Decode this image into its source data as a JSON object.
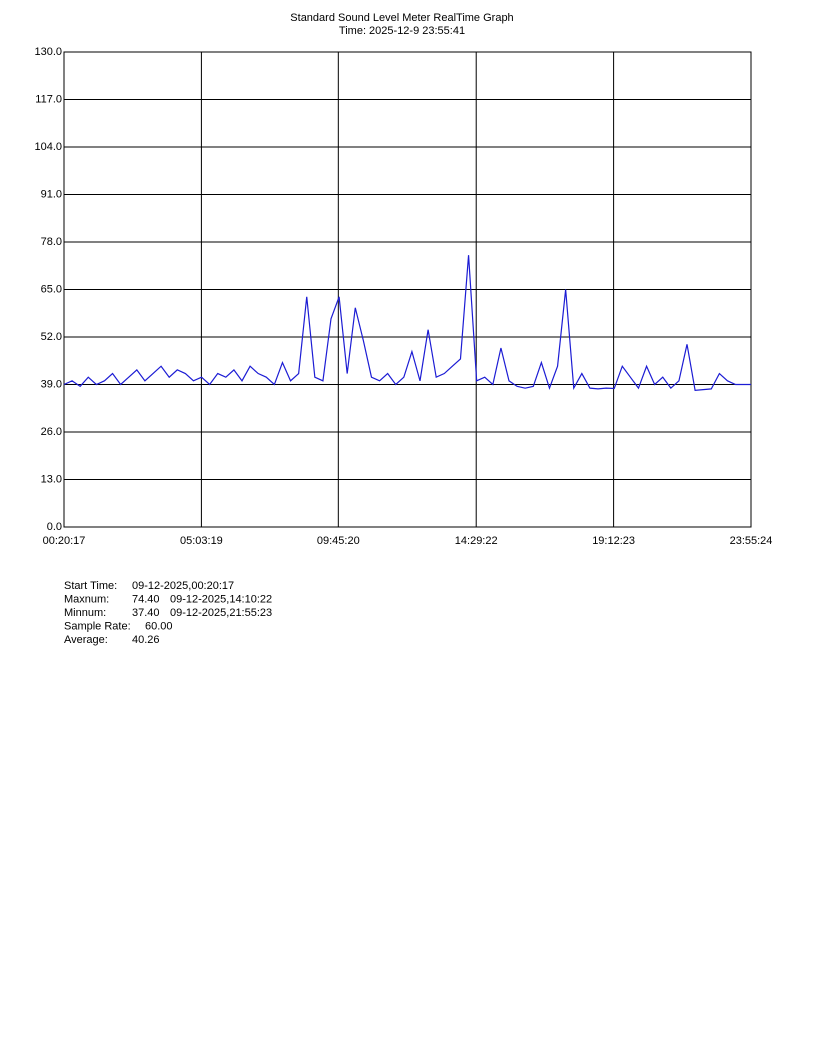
{
  "chart_data": {
    "type": "line",
    "title": "Standard Sound Level Meter RealTime Graph",
    "subtitle": "Time: 2025-12-9  23:55:41",
    "x": [
      1217,
      2217,
      3217,
      4217,
      5217,
      6217,
      7217,
      8217,
      9217,
      10217,
      11217,
      12217,
      13217,
      14217,
      15217,
      16217,
      17217,
      18217,
      19217,
      20217,
      21217,
      22217,
      23217,
      24217,
      25217,
      26217,
      27217,
      28217,
      29217,
      30217,
      31217,
      32217,
      33217,
      34217,
      35217,
      36217,
      37217,
      38217,
      39217,
      40217,
      41217,
      42217,
      43217,
      44217,
      45217,
      46217,
      47217,
      48217,
      49217,
      50217,
      51217,
      52217,
      53217,
      54217,
      55217,
      56217,
      57217,
      58217,
      59217,
      60217,
      61217,
      62217,
      63217,
      64217,
      65217,
      66217,
      67217,
      68217,
      69217,
      70217,
      71217,
      72217,
      73217,
      74217,
      75217,
      76217,
      77217,
      78217,
      79217,
      80217,
      81217,
      82217,
      83217,
      84217,
      85217,
      86124
    ],
    "values": [
      39,
      40,
      38.5,
      41,
      39,
      40,
      42,
      39,
      41,
      43,
      40,
      42,
      44,
      41,
      43,
      42,
      40,
      41,
      39,
      42,
      41,
      43,
      40,
      44,
      42,
      41,
      39,
      45,
      40,
      42,
      63,
      41,
      40,
      57,
      63,
      42,
      60,
      51,
      41,
      40,
      42,
      39,
      41,
      48,
      40,
      54,
      41,
      42,
      44,
      46,
      74.4,
      40,
      41,
      39,
      49,
      40,
      38.5,
      38,
      38.5,
      45,
      38,
      44,
      65,
      38,
      42,
      38,
      37.8,
      38,
      37.9,
      44,
      41,
      38,
      44,
      39,
      41,
      38,
      40,
      50,
      37.4,
      37.6,
      37.8,
      42,
      40,
      39,
      39,
      39
    ],
    "color": "#1c1cd4",
    "xlim": [
      1217,
      86124
    ],
    "xticks": [
      {
        "value": 1217,
        "label": "00:20:17"
      },
      {
        "value": 18199,
        "label": "05:03:19"
      },
      {
        "value": 35120,
        "label": "09:45:20"
      },
      {
        "value": 52162,
        "label": "14:29:22"
      },
      {
        "value": 69143,
        "label": "19:12:23"
      },
      {
        "value": 86124,
        "label": "23:55:24"
      }
    ],
    "ylim": [
      0,
      130
    ],
    "yticks": [
      {
        "value": 0,
        "label": "0.0"
      },
      {
        "value": 13,
        "label": "13.0"
      },
      {
        "value": 26,
        "label": "26.0"
      },
      {
        "value": 39,
        "label": "39.0"
      },
      {
        "value": 52,
        "label": "52.0"
      },
      {
        "value": 65,
        "label": "65.0"
      },
      {
        "value": 78,
        "label": "78.0"
      },
      {
        "value": 91,
        "label": "91.0"
      },
      {
        "value": 104,
        "label": "104.0"
      },
      {
        "value": 117,
        "label": "117.0"
      },
      {
        "value": 130,
        "label": "130.0"
      }
    ],
    "grid": true,
    "stats": [
      {
        "label": "Start Time:",
        "value": "09-12-2025,00:20:17"
      },
      {
        "label": "Maxnum:",
        "value": "74.40",
        "time": "09-12-2025,14:10:22"
      },
      {
        "label": "Minnum:",
        "value": "37.40",
        "time": "09-12-2025,21:55:23"
      },
      {
        "label": "Sample Rate:",
        "value": "60.00"
      },
      {
        "label": "Average:",
        "value": "40.26"
      }
    ]
  }
}
